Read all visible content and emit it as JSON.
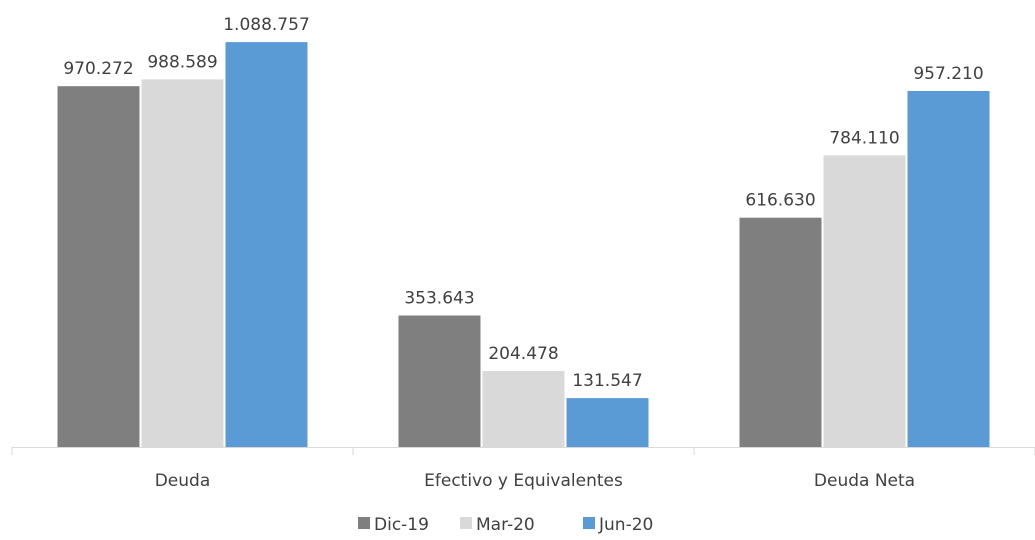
{
  "chart_data": {
    "type": "bar",
    "categories": [
      "Deuda",
      "Efectivo y Equivalentes",
      "Deuda Neta"
    ],
    "series": [
      {
        "name": "Dic-19",
        "values": [
          970272,
          353643,
          616630
        ],
        "labels": [
          "970.272",
          "353.643",
          "616.630"
        ],
        "color": "#7f7f7f"
      },
      {
        "name": "Mar-20",
        "values": [
          988589,
          204478,
          784110
        ],
        "labels": [
          "988.589",
          "204.478",
          "784.110"
        ],
        "color": "#d9d9d9"
      },
      {
        "name": "Jun-20",
        "values": [
          1088757,
          131547,
          957210
        ],
        "labels": [
          "1.088.757",
          "131.547",
          "957.210"
        ],
        "color": "#5b9bd5"
      }
    ],
    "ylim": [
      0,
      1202000
    ],
    "grid": false,
    "legend": "bottom-center",
    "axis_color": "#d9d9d9"
  }
}
